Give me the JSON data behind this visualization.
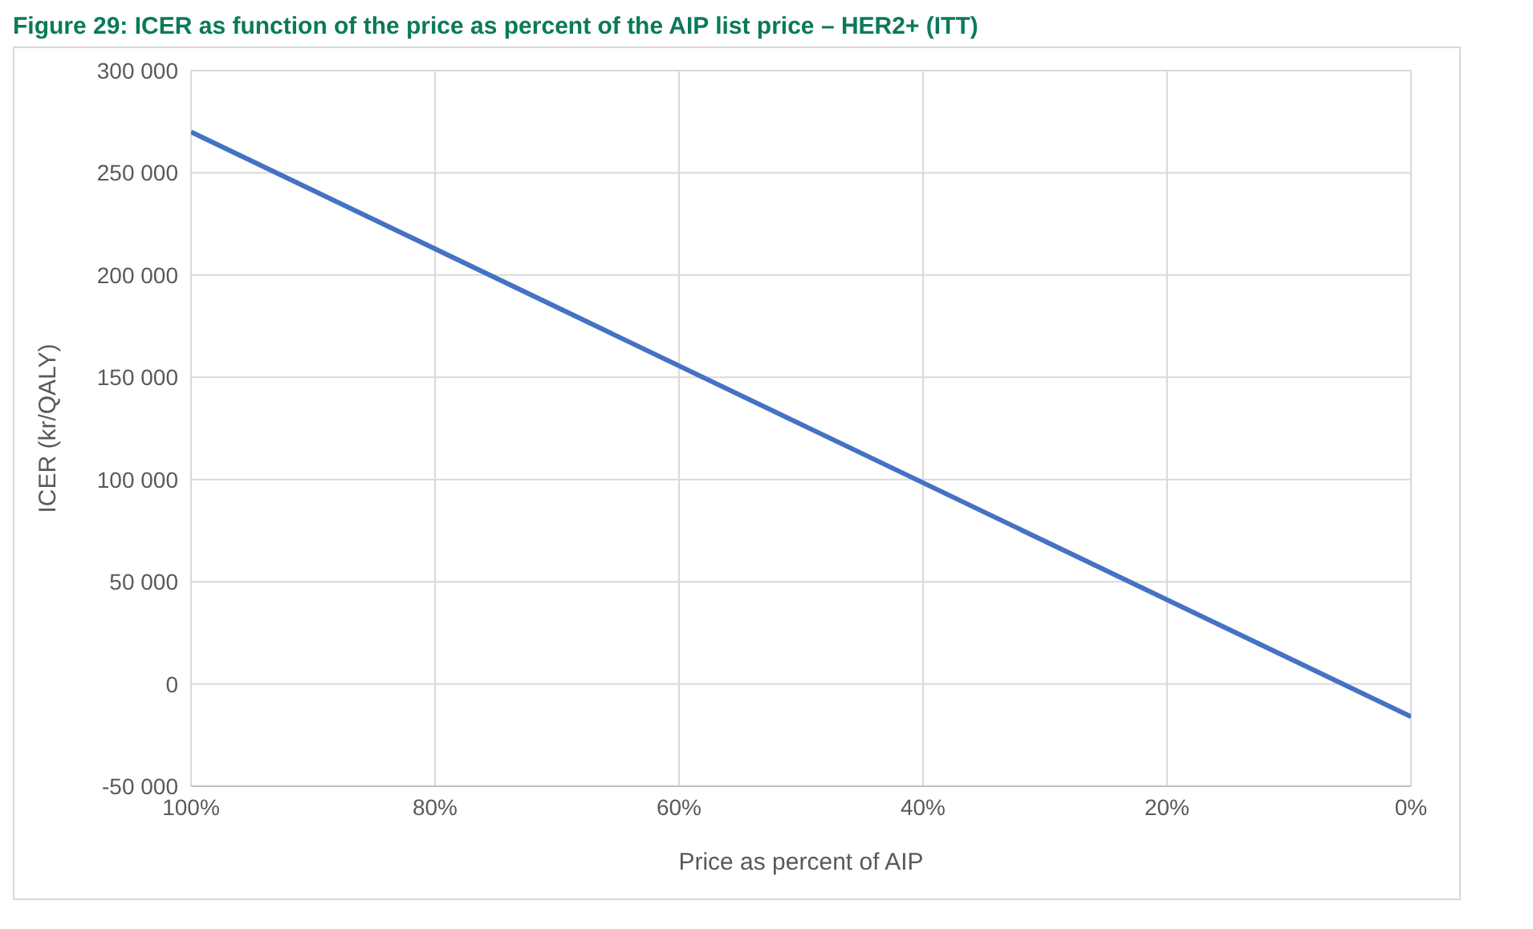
{
  "chart_data": {
    "type": "line",
    "title": "Figure 29: ICER as function of the price as percent of the AIP list price – HER2+ (ITT)",
    "xlabel": "Price as percent of AIP",
    "ylabel": "ICER (kr/QALY)",
    "x": [
      100,
      0
    ],
    "series": [
      {
        "color": "#4472c4",
        "values": [
          270000,
          -16000
        ]
      }
    ],
    "xlim": [
      100,
      0
    ],
    "xticks": [
      {
        "value": 100,
        "label": "100%"
      },
      {
        "value": 80,
        "label": "80%"
      },
      {
        "value": 60,
        "label": "60%"
      },
      {
        "value": 40,
        "label": "40%"
      },
      {
        "value": 20,
        "label": "20%"
      },
      {
        "value": 0,
        "label": "0%"
      }
    ],
    "ylim": [
      -50000,
      300000
    ],
    "yticks": [
      {
        "value": -50000,
        "label": "-50 000"
      },
      {
        "value": 0,
        "label": "0"
      },
      {
        "value": 50000,
        "label": "50 000"
      },
      {
        "value": 100000,
        "label": "100 000"
      },
      {
        "value": 150000,
        "label": "150 000"
      },
      {
        "value": 200000,
        "label": "200 000"
      },
      {
        "value": 250000,
        "label": "250 000"
      },
      {
        "value": 300000,
        "label": "300 000"
      }
    ],
    "grid": true,
    "marker": "none",
    "line_style": "solid"
  }
}
